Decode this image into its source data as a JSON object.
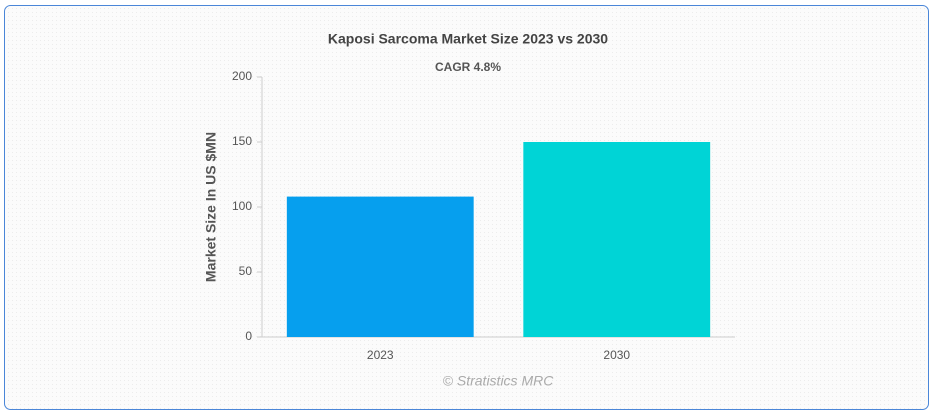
{
  "chart_data": {
    "type": "bar",
    "title": "Kaposi Sarcoma Market Size 2023 vs 2030",
    "subtitle": "CAGR 4.8%",
    "y_label": "Market Size In US $MN",
    "categories": [
      "2023",
      "2030"
    ],
    "values": [
      108,
      150
    ],
    "colors": [
      "#069fee",
      "#00d4d6"
    ],
    "ylim": [
      0,
      200
    ],
    "yticks": [
      0,
      50,
      100,
      150,
      200
    ],
    "grid": false,
    "watermark": "© Stratistics MRC"
  }
}
